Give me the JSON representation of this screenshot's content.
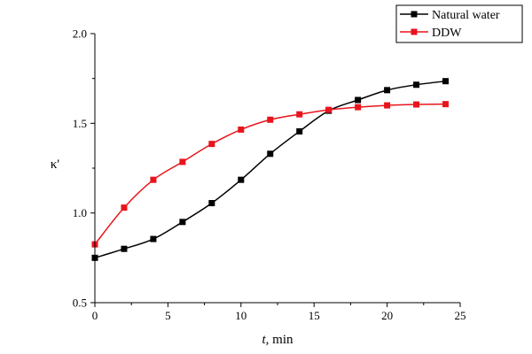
{
  "chart_data": {
    "type": "line",
    "xlabel_italic": "t",
    "xlabel_rest": ", min",
    "ylabel": "κ'",
    "xlim": [
      0,
      25
    ],
    "ylim": [
      0.5,
      2.0
    ],
    "xticks": [
      "0",
      "5",
      "10",
      "15",
      "20",
      "25"
    ],
    "yticks": [
      "0.5",
      "1.0",
      "1.5",
      "2.0"
    ],
    "grid": false,
    "legend_position": "top-right",
    "series": [
      {
        "name": "Natural water",
        "color": "#000000",
        "marker": "square",
        "x": [
          0,
          2,
          4,
          6,
          8,
          10,
          12,
          14,
          16,
          18,
          20,
          22,
          24
        ],
        "y": [
          0.75,
          0.8,
          0.855,
          0.95,
          1.055,
          1.185,
          1.33,
          1.455,
          1.57,
          1.63,
          1.685,
          1.715,
          1.735
        ]
      },
      {
        "name": "DDW",
        "color": "#e8141c",
        "marker": "square",
        "x": [
          0,
          2,
          4,
          6,
          8,
          10,
          12,
          14,
          16,
          18,
          20,
          22,
          24
        ],
        "y": [
          0.825,
          1.03,
          1.185,
          1.285,
          1.385,
          1.465,
          1.52,
          1.55,
          1.575,
          1.59,
          1.6,
          1.605,
          1.607
        ]
      }
    ]
  }
}
